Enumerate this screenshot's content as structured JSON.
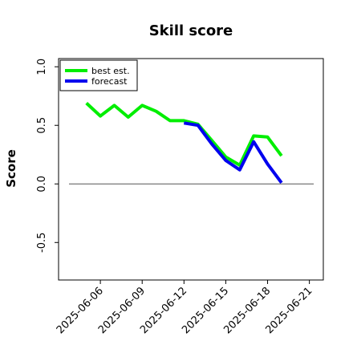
{
  "chart_data": {
    "type": "line",
    "title": "Skill score",
    "ylabel": "Score",
    "xlabel": "",
    "xlim": [
      "2025-06-03",
      "2025-06-22"
    ],
    "ylim": [
      -0.82,
      1.07
    ],
    "x_ticks": [
      "2025-06-06",
      "2025-06-09",
      "2025-06-12",
      "2025-06-15",
      "2025-06-18",
      "2025-06-21"
    ],
    "highlighted_tick": "2025-06-12",
    "highlight_color": "#228B22",
    "y_ticks": [
      -0.5,
      0.0,
      0.5,
      1.0
    ],
    "y_tick_labels": [
      "-0.5",
      "0.0",
      "0.5",
      "1.0"
    ],
    "reference_line": {
      "y": 0.0,
      "color": "#555555"
    },
    "legend": {
      "position": "top-left"
    },
    "series": [
      {
        "name": "best est.",
        "color": "#00ee00",
        "x": [
          "2025-06-05",
          "2025-06-06",
          "2025-06-07",
          "2025-06-08",
          "2025-06-09",
          "2025-06-10",
          "2025-06-11",
          "2025-06-12",
          "2025-06-13",
          "2025-06-14",
          "2025-06-15",
          "2025-06-16",
          "2025-06-17",
          "2025-06-18",
          "2025-06-19"
        ],
        "values": [
          0.69,
          0.58,
          0.67,
          0.57,
          0.67,
          0.62,
          0.54,
          0.54,
          0.51,
          0.37,
          0.23,
          0.16,
          0.41,
          0.4,
          0.24
        ]
      },
      {
        "name": "forecast",
        "color": "#0000ee",
        "x": [
          "2025-06-12",
          "2025-06-13",
          "2025-06-14",
          "2025-06-15",
          "2025-06-16",
          "2025-06-17",
          "2025-06-18",
          "2025-06-19"
        ],
        "values": [
          0.52,
          0.5,
          0.34,
          0.2,
          0.12,
          0.36,
          0.17,
          0.01
        ]
      }
    ]
  }
}
